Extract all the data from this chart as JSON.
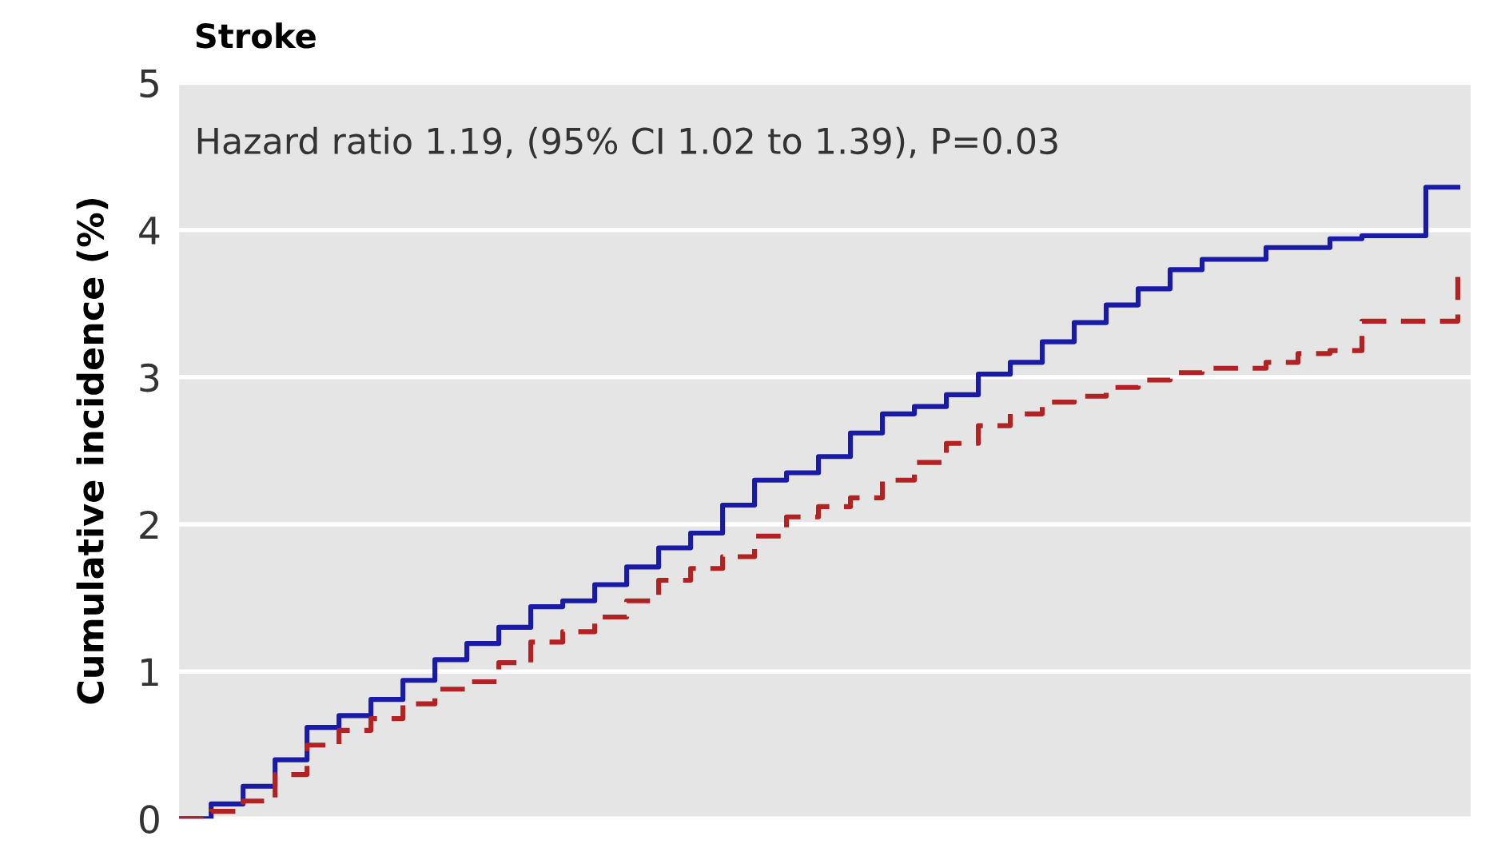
{
  "chart_data": {
    "type": "step",
    "title": "Stroke",
    "ylabel": "Cumulative incidence (%)",
    "annotations": [
      "Hazard ratio 1.19, (95% CI 1.02 to 1.39), P=0.03"
    ],
    "categories": [
      null,
      null,
      null,
      null,
      null,
      null,
      null,
      null,
      null,
      null,
      null,
      null,
      null,
      null,
      null,
      null,
      null,
      null,
      null,
      null,
      null,
      null,
      null,
      null,
      null,
      null,
      null,
      null,
      null,
      null,
      null,
      null,
      null,
      null,
      null,
      null,
      null,
      null,
      null,
      null,
      null
    ],
    "series": [
      {
        "color": "#1a1aa8",
        "line_style": "solid",
        "values": [
          0,
          0.1,
          0.22,
          0.4,
          0.62,
          0.7,
          0.81,
          0.94,
          1.08,
          1.19,
          1.3,
          1.44,
          1.48,
          1.59,
          1.71,
          1.84,
          1.94,
          2.13,
          2.3,
          2.35,
          2.46,
          2.62,
          2.75,
          2.8,
          2.88,
          3.02,
          3.1,
          3.24,
          3.37,
          3.49,
          3.6,
          3.73,
          3.8,
          3.8,
          3.88,
          3.88,
          3.94,
          3.96,
          3.96,
          4.29,
          4.29
        ]
      },
      {
        "color": "#b22222",
        "line_style": "dashed",
        "values": [
          0,
          0.05,
          0.12,
          0.3,
          0.5,
          0.6,
          0.68,
          0.78,
          0.88,
          0.93,
          1.06,
          1.2,
          1.27,
          1.37,
          1.48,
          1.62,
          1.7,
          1.78,
          1.92,
          2.05,
          2.12,
          2.18,
          2.3,
          2.42,
          2.55,
          2.67,
          2.75,
          2.83,
          2.87,
          2.93,
          2.98,
          3.03,
          3.06,
          3.06,
          3.1,
          3.16,
          3.18,
          3.38,
          3.38,
          3.38,
          3.68
        ]
      }
    ],
    "ylim": [
      0,
      5
    ],
    "yticks": [
      0,
      1,
      2,
      3,
      4,
      5
    ],
    "grid": "y",
    "tick_labels": "y"
  }
}
